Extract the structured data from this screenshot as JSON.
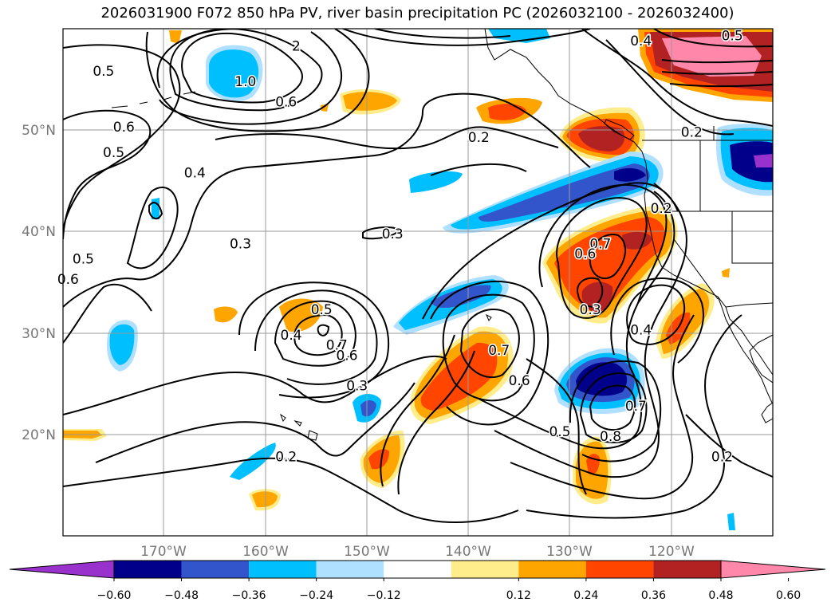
{
  "title": "2026031900 F072 850 hPa PV, river basin precipitation PC (2026032100 - 2026032400)",
  "map": {
    "lon_range": [
      -180,
      -110
    ],
    "lat_range": [
      10,
      60
    ],
    "lat_ticks": [
      {
        "value": 50,
        "label": "50°N"
      },
      {
        "value": 40,
        "label": "40°N"
      },
      {
        "value": 30,
        "label": "30°N"
      },
      {
        "value": 20,
        "label": "20°N"
      }
    ],
    "lon_ticks": [
      {
        "value": -170,
        "label": "170°W"
      },
      {
        "value": -160,
        "label": "160°W"
      },
      {
        "value": -150,
        "label": "150°W"
      },
      {
        "value": -140,
        "label": "140°W"
      },
      {
        "value": -130,
        "label": "130°W"
      },
      {
        "value": -120,
        "label": "120°W"
      }
    ]
  },
  "contour_labels": [
    {
      "text": "0.5",
      "lon": -176,
      "lat": 55.5
    },
    {
      "text": "0.6",
      "lon": -174,
      "lat": 50
    },
    {
      "text": "0.5",
      "lon": -175,
      "lat": 47.5
    },
    {
      "text": "0.4",
      "lon": -167,
      "lat": 45.5
    },
    {
      "text": "0.3",
      "lon": -162.5,
      "lat": 38.5
    },
    {
      "text": "0.5",
      "lon": -178,
      "lat": 37
    },
    {
      "text": "0.6",
      "lon": -179.5,
      "lat": 35
    },
    {
      "text": "1.0",
      "lon": -162,
      "lat": 54.5
    },
    {
      "text": "0.6",
      "lon": -158,
      "lat": 52.5
    },
    {
      "text": "2",
      "lon": -157,
      "lat": 58
    },
    {
      "text": "0.2",
      "lon": -139,
      "lat": 49
    },
    {
      "text": "0.3",
      "lon": -147.5,
      "lat": 39.5
    },
    {
      "text": "0.4",
      "lon": -157.5,
      "lat": 29.5
    },
    {
      "text": "0.5",
      "lon": -154.5,
      "lat": 32
    },
    {
      "text": "0.7",
      "lon": -153,
      "lat": 28.5
    },
    {
      "text": "0.6",
      "lon": -152,
      "lat": 27.5
    },
    {
      "text": "0.3",
      "lon": -151,
      "lat": 24.5
    },
    {
      "text": "0.2",
      "lon": -158,
      "lat": 17.5
    },
    {
      "text": "0.7",
      "lon": -137,
      "lat": 28
    },
    {
      "text": "0.6",
      "lon": -135,
      "lat": 25
    },
    {
      "text": "0.5",
      "lon": -131,
      "lat": 20
    },
    {
      "text": "0.8",
      "lon": -126,
      "lat": 19.5
    },
    {
      "text": "0.7",
      "lon": -123.5,
      "lat": 22.5
    },
    {
      "text": "0.7",
      "lon": -127,
      "lat": 38.5
    },
    {
      "text": "0.6",
      "lon": -128.5,
      "lat": 37.5
    },
    {
      "text": "0.3",
      "lon": -128,
      "lat": 32
    },
    {
      "text": "0.4",
      "lon": -123,
      "lat": 30
    },
    {
      "text": "0.2",
      "lon": -121,
      "lat": 42
    },
    {
      "text": "0.2",
      "lon": -118,
      "lat": 49.5
    },
    {
      "text": "0.4",
      "lon": -123,
      "lat": 58.5
    },
    {
      "text": "0.5",
      "lon": -114,
      "lat": 59
    },
    {
      "text": "0.2",
      "lon": -115,
      "lat": 17.5
    }
  ],
  "colorbar": {
    "colors": [
      "#9932cc",
      "#00008b",
      "#3355cc",
      "#00bfff",
      "#b0e0ff",
      "#ffffff",
      "#ffec8b",
      "#ffa500",
      "#ff4500",
      "#b22222",
      "#ff88aa"
    ],
    "ticks": [
      "−0.60",
      "−0.48",
      "−0.36",
      "−0.24",
      "−0.12",
      "0.12",
      "0.24",
      "0.36",
      "0.48",
      "0.60"
    ]
  }
}
